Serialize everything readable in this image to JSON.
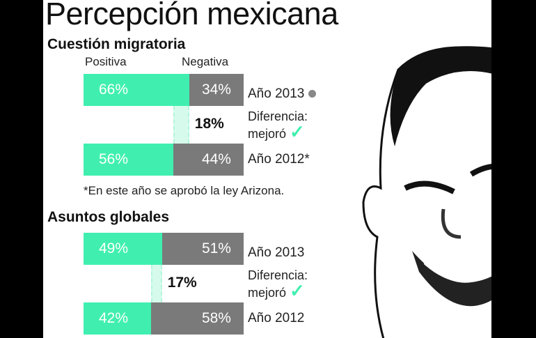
{
  "title": "Percepción mexicana",
  "headers": {
    "positive": "Positiva",
    "negative": "Negativa"
  },
  "footnote": "*En este año se aprobó la ley Arizona.",
  "diff_label_1": "Diferencia:",
  "diff_label_2": "mejoró",
  "colors": {
    "positive": "#40efaf",
    "negative": "#7a7a7a"
  },
  "chart_data": [
    {
      "type": "bar",
      "stacked": true,
      "title": "Cuestión migratoria",
      "categories": [
        "Año 2013",
        "Año 2012"
      ],
      "category_labels": [
        "Año 2013",
        "Año 2012*"
      ],
      "series": [
        {
          "name": "Positiva",
          "values": [
            66,
            56
          ],
          "labels": [
            "66%",
            "56%"
          ]
        },
        {
          "name": "Negativa",
          "values": [
            34,
            44
          ],
          "labels": [
            "34%",
            "44%"
          ]
        }
      ],
      "difference": "18%",
      "ylim": [
        0,
        100
      ]
    },
    {
      "type": "bar",
      "stacked": true,
      "title": "Asuntos globales",
      "categories": [
        "Año 2013",
        "Año 2012"
      ],
      "category_labels": [
        "Año 2013",
        "Año 2012"
      ],
      "series": [
        {
          "name": "Positiva",
          "values": [
            49,
            42
          ],
          "labels": [
            "49%",
            "42%"
          ]
        },
        {
          "name": "Negativa",
          "values": [
            51,
            58
          ],
          "labels": [
            "51%",
            "58%"
          ]
        }
      ],
      "difference": "17%",
      "ylim": [
        0,
        100
      ]
    }
  ]
}
